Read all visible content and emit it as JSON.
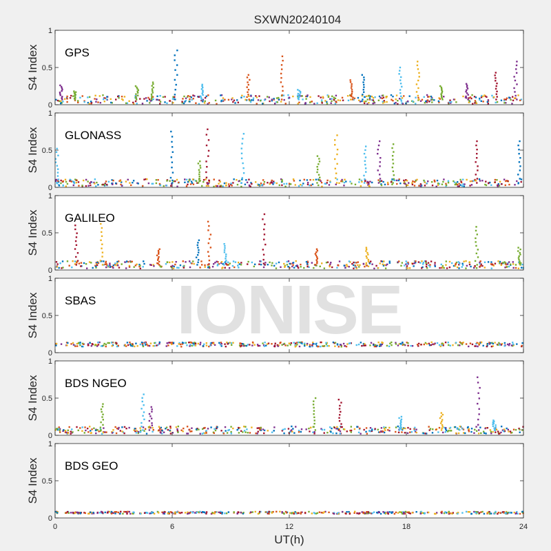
{
  "figure": {
    "title": "SXWN20240104",
    "xlabel": "UT(h)",
    "ylabel": "S4 Index",
    "watermark": "IONISE"
  },
  "axes": {
    "xlim": [
      0,
      24
    ],
    "xticks": [
      0,
      6,
      12,
      18,
      24
    ],
    "ylim": [
      0,
      1
    ],
    "yticks": [
      0,
      0.5,
      1
    ],
    "ytick_labels": [
      "0",
      "0.5",
      "1"
    ]
  },
  "colors": [
    "#0072BD",
    "#D95319",
    "#EDB120",
    "#7E2F8E",
    "#77AC30",
    "#4DBEEE",
    "#A2142F"
  ],
  "chart_data": [
    {
      "type": "scatter",
      "panel_label": "GPS",
      "ylabel": "S4 Index",
      "xlim": [
        0,
        24
      ],
      "ylim": [
        0,
        1
      ],
      "baseline_s4": 0.07,
      "noise": 0.06,
      "peaks": [
        {
          "x": 0.3,
          "y": 0.26,
          "c": 3
        },
        {
          "x": 1.0,
          "y": 0.18,
          "c": 4
        },
        {
          "x": 4.2,
          "y": 0.25,
          "c": 4
        },
        {
          "x": 5.0,
          "y": 0.3,
          "c": 4
        },
        {
          "x": 6.2,
          "y": 0.73,
          "c": 0
        },
        {
          "x": 7.5,
          "y": 0.27,
          "c": 5
        },
        {
          "x": 9.9,
          "y": 0.4,
          "c": 1
        },
        {
          "x": 11.6,
          "y": 0.65,
          "c": 1
        },
        {
          "x": 12.5,
          "y": 0.2,
          "c": 5
        },
        {
          "x": 15.2,
          "y": 0.33,
          "c": 1
        },
        {
          "x": 15.8,
          "y": 0.4,
          "c": 0
        },
        {
          "x": 17.7,
          "y": 0.5,
          "c": 5
        },
        {
          "x": 18.6,
          "y": 0.58,
          "c": 2
        },
        {
          "x": 19.8,
          "y": 0.25,
          "c": 4
        },
        {
          "x": 21.1,
          "y": 0.28,
          "c": 3
        },
        {
          "x": 22.6,
          "y": 0.43,
          "c": 6
        },
        {
          "x": 23.6,
          "y": 0.58,
          "c": 3
        }
      ]
    },
    {
      "type": "scatter",
      "panel_label": "GLONASS",
      "ylabel": "S4 Index",
      "xlim": [
        0,
        24
      ],
      "ylim": [
        0,
        1
      ],
      "baseline_s4": 0.06,
      "noise": 0.05,
      "peaks": [
        {
          "x": 0.1,
          "y": 0.52,
          "c": 5
        },
        {
          "x": 6.0,
          "y": 0.75,
          "c": 0
        },
        {
          "x": 7.4,
          "y": 0.35,
          "c": 4
        },
        {
          "x": 7.8,
          "y": 0.78,
          "c": 6
        },
        {
          "x": 9.6,
          "y": 0.72,
          "c": 5
        },
        {
          "x": 13.5,
          "y": 0.42,
          "c": 4
        },
        {
          "x": 14.4,
          "y": 0.7,
          "c": 2
        },
        {
          "x": 15.9,
          "y": 0.55,
          "c": 5
        },
        {
          "x": 16.6,
          "y": 0.62,
          "c": 3
        },
        {
          "x": 17.3,
          "y": 0.58,
          "c": 4
        },
        {
          "x": 21.6,
          "y": 0.62,
          "c": 6
        },
        {
          "x": 23.8,
          "y": 0.62,
          "c": 0
        }
      ]
    },
    {
      "type": "scatter",
      "panel_label": "GALILEO",
      "ylabel": "S4 Index",
      "xlim": [
        0,
        24
      ],
      "ylim": [
        0,
        1
      ],
      "baseline_s4": 0.07,
      "noise": 0.05,
      "peaks": [
        {
          "x": 1.1,
          "y": 0.6,
          "c": 6
        },
        {
          "x": 2.4,
          "y": 0.62,
          "c": 2
        },
        {
          "x": 5.3,
          "y": 0.28,
          "c": 1
        },
        {
          "x": 7.9,
          "y": 0.65,
          "c": 1
        },
        {
          "x": 7.3,
          "y": 0.4,
          "c": 0
        },
        {
          "x": 8.7,
          "y": 0.35,
          "c": 5
        },
        {
          "x": 10.7,
          "y": 0.75,
          "c": 6
        },
        {
          "x": 13.4,
          "y": 0.28,
          "c": 1
        },
        {
          "x": 16.0,
          "y": 0.3,
          "c": 2
        },
        {
          "x": 21.6,
          "y": 0.58,
          "c": 4
        },
        {
          "x": 23.8,
          "y": 0.3,
          "c": 4
        }
      ]
    },
    {
      "type": "scatter",
      "panel_label": "SBAS",
      "ylabel": "S4 Index",
      "xlim": [
        0,
        24
      ],
      "ylim": [
        0,
        1
      ],
      "baseline_s4": 0.11,
      "noise": 0.03,
      "peaks": []
    },
    {
      "type": "scatter",
      "panel_label": "BDS NGEO",
      "ylabel": "S4 Index",
      "xlim": [
        0,
        24
      ],
      "ylim": [
        0,
        1
      ],
      "baseline_s4": 0.07,
      "noise": 0.05,
      "peaks": [
        {
          "x": 2.4,
          "y": 0.42,
          "c": 4
        },
        {
          "x": 4.5,
          "y": 0.55,
          "c": 5
        },
        {
          "x": 4.9,
          "y": 0.38,
          "c": 3
        },
        {
          "x": 13.3,
          "y": 0.5,
          "c": 4
        },
        {
          "x": 14.6,
          "y": 0.48,
          "c": 6
        },
        {
          "x": 17.7,
          "y": 0.25,
          "c": 5
        },
        {
          "x": 19.8,
          "y": 0.3,
          "c": 2
        },
        {
          "x": 21.7,
          "y": 0.78,
          "c": 3
        },
        {
          "x": 22.5,
          "y": 0.2,
          "c": 5
        }
      ]
    },
    {
      "type": "scatter",
      "panel_label": "BDS GEO",
      "ylabel": "S4 Index",
      "xlim": [
        0,
        24
      ],
      "ylim": [
        0,
        1
      ],
      "baseline_s4": 0.07,
      "noise": 0.015,
      "peaks": []
    }
  ]
}
